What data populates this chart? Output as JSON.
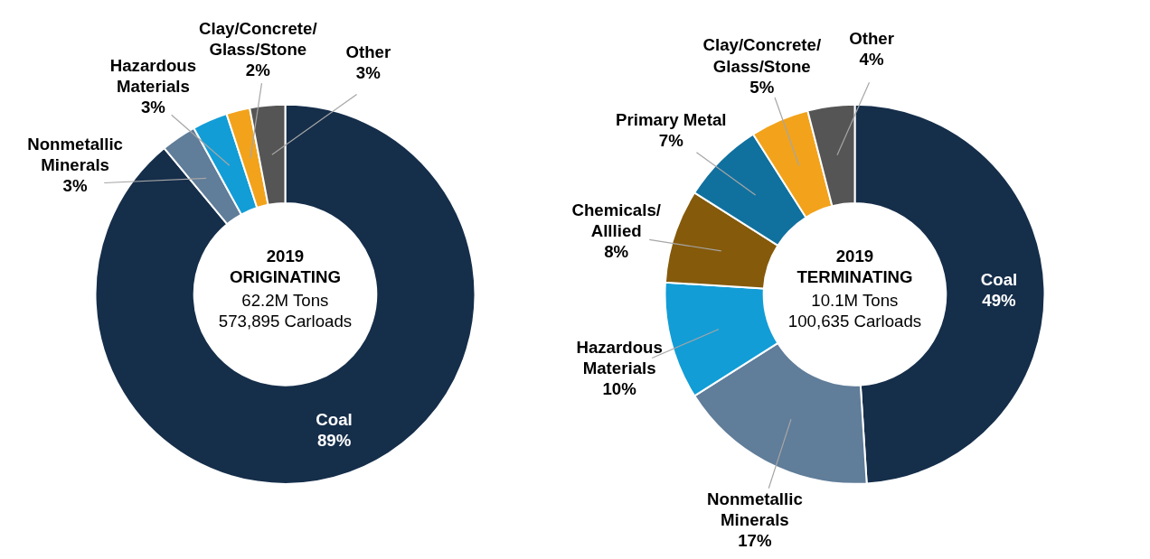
{
  "chart_data": [
    {
      "type": "donut",
      "title": "2019\nORIGINATING",
      "subtitle": "62.2M Tons\n573,895 Carloads",
      "categories": [
        "Coal",
        "Nonmetallic\nMinerals",
        "Hazardous\nMaterials",
        "Clay/Concrete/\nGlass/Stone",
        "Other"
      ],
      "values": [
        89,
        3,
        3,
        2,
        3
      ],
      "value_labels": [
        "89%",
        "3%",
        "3%",
        "2%",
        "3%"
      ],
      "colors": [
        "#152e4a",
        "#607d99",
        "#129dd6",
        "#f2a31b",
        "#555555"
      ]
    },
    {
      "type": "donut",
      "title": "2019\nTERMINATING",
      "subtitle": "10.1M Tons\n100,635 Carloads",
      "categories": [
        "Coal",
        "Nonmetallic\nMinerals",
        "Hazardous\nMaterials",
        "Chemicals/\nAlllied",
        "Primary Metal",
        "Clay/Concrete/\nGlass/Stone",
        "Other"
      ],
      "values": [
        49,
        17,
        10,
        8,
        7,
        5,
        4
      ],
      "value_labels": [
        "49%",
        "17%",
        "10%",
        "8%",
        "7%",
        "5%",
        "4%"
      ],
      "colors": [
        "#152e4a",
        "#607d99",
        "#129dd6",
        "#855a0b",
        "#10719f",
        "#f2a31b",
        "#555555"
      ]
    }
  ]
}
